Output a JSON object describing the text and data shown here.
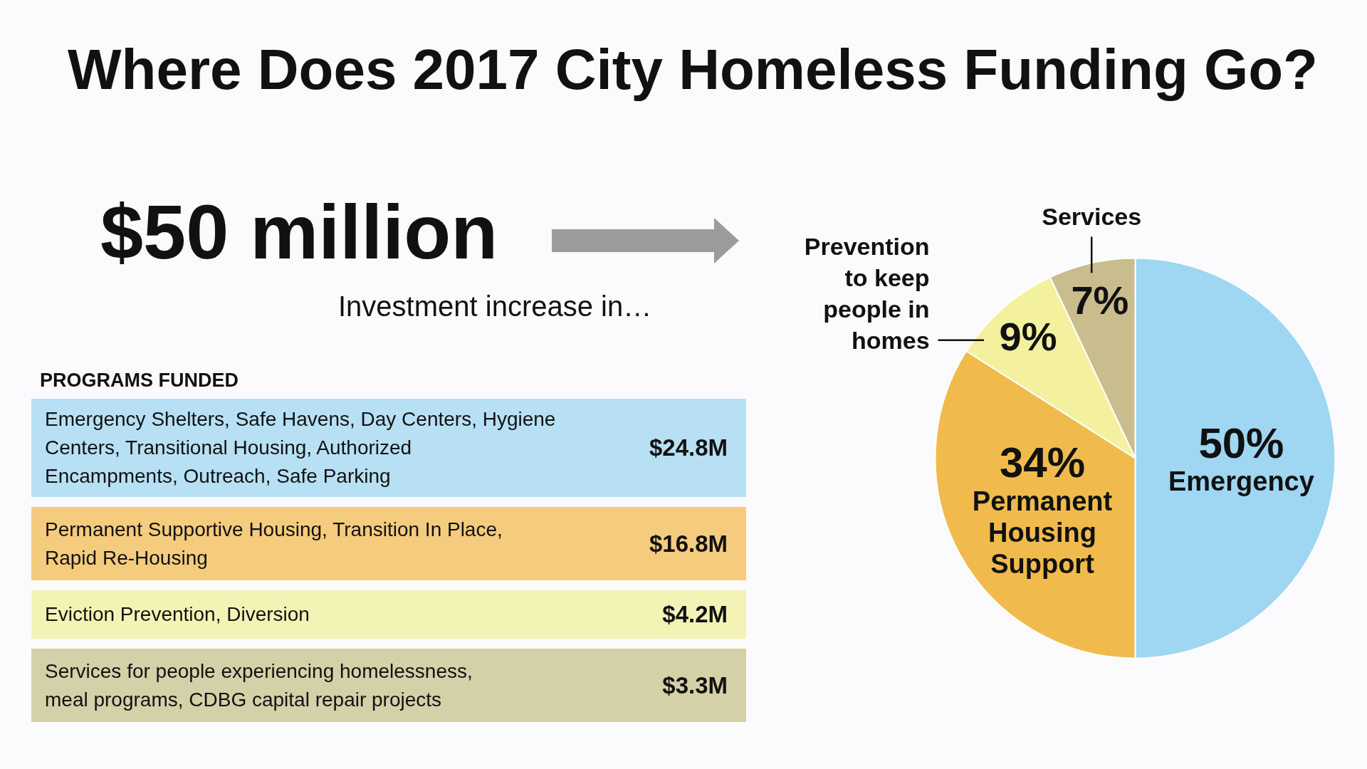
{
  "chart_data": [
    {
      "type": "other",
      "title": "PROGRAMS FUNDED",
      "annotations": [
        "$50 million",
        "Investment increase in…"
      ],
      "categories": [
        "Emergency Shelters, Safe Havens, Day Centers, Hygiene\nCenters, Transitional Housing, Authorized\nEncampments, Outreach, Safe Parking",
        "Permanent Supportive Housing, Transition In Place,\nRapid Re-Housing",
        "Eviction Prevention, Diversion",
        "Services for people experiencing homelessness,\nmeal programs, CDBG capital repair projects"
      ],
      "value_labels": [
        "$24.8M",
        "$16.8M",
        "$4.2M",
        "$3.3M"
      ],
      "colors": [
        "#b7e0f5",
        "#f5cb7e",
        "#f4f3b6",
        "#d4d0a8"
      ]
    },
    {
      "type": "pie",
      "title": "Where Does 2017 City Homeless Funding Go?",
      "categories": [
        "Emergency",
        "Permanent\nHousing\nSupport",
        "Prevention\nto keep\npeople in\nhomes",
        "Services"
      ],
      "values": [
        50,
        34,
        9,
        7
      ],
      "value_labels": [
        "50%",
        "34%",
        "9%",
        "7%"
      ],
      "colors": [
        "#9fd6f2",
        "#f0bb4c",
        "#f3f09e",
        "#c9bd8e"
      ]
    }
  ]
}
